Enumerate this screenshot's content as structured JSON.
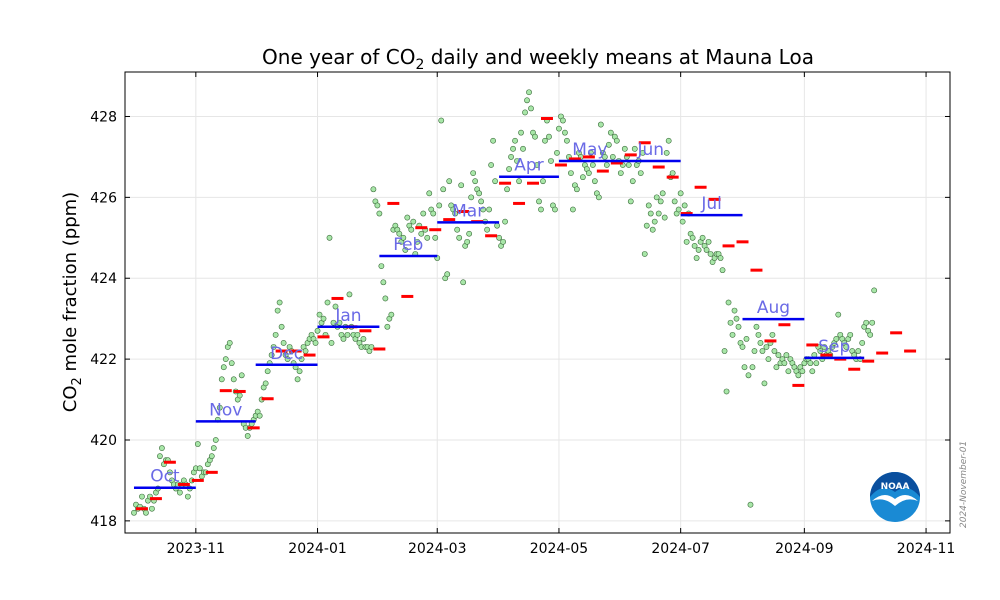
{
  "chart_data": {
    "type": "scatter",
    "title_prefix": "One year of CO",
    "title_sub": "2",
    "title_suffix": " daily and weekly means at Mauna Loa",
    "ylabel_prefix": "CO",
    "ylabel_sub": "2",
    "ylabel_suffix": " mole fraction (ppm)",
    "xlabel": "",
    "x_units": "days since 2023-10-01",
    "xlim": [
      -4.5,
      409
    ],
    "ylim": [
      417.7,
      429.1
    ],
    "x_ticks": [
      {
        "x": 31,
        "label": "2023-11"
      },
      {
        "x": 92,
        "label": "2024-01"
      },
      {
        "x": 152,
        "label": "2024-03"
      },
      {
        "x": 213,
        "label": "2024-05"
      },
      {
        "x": 274,
        "label": "2024-07"
      },
      {
        "x": 336,
        "label": "2024-09"
      },
      {
        "x": 397,
        "label": "2024-11"
      }
    ],
    "y_ticks": [
      418,
      420,
      422,
      424,
      426,
      428
    ],
    "grid": true,
    "colors": {
      "daily_fill": "#a8e6a8",
      "daily_edge": "#3a6b3a",
      "weekly": "#ff0000",
      "monthly": "#0000ee",
      "month_label": "#6a6ae6",
      "noaa_blue": "#0a4f9e",
      "noaa_light": "#1a8ad4"
    },
    "monthly_means": [
      {
        "label": "Oct",
        "x0": 0,
        "x1": 31,
        "y": 418.82
      },
      {
        "label": "Nov",
        "x0": 31,
        "x1": 61,
        "y": 420.46
      },
      {
        "label": "Dec",
        "x0": 61,
        "x1": 92,
        "y": 421.86
      },
      {
        "label": "Jan",
        "x0": 92,
        "x1": 123,
        "y": 422.8
      },
      {
        "label": "Feb",
        "x0": 123,
        "x1": 152,
        "y": 424.55
      },
      {
        "label": "Mar",
        "x0": 152,
        "x1": 183,
        "y": 425.38
      },
      {
        "label": "Apr",
        "x0": 183,
        "x1": 213,
        "y": 426.51
      },
      {
        "label": "May",
        "x0": 213,
        "x1": 244,
        "y": 426.9
      },
      {
        "label": "Jun",
        "x0": 244,
        "x1": 274,
        "y": 426.9
      },
      {
        "label": "Jul",
        "x0": 274,
        "x1": 305,
        "y": 425.56
      },
      {
        "label": "Aug",
        "x0": 305,
        "x1": 336,
        "y": 422.99
      },
      {
        "label": "Sep",
        "x0": 336,
        "x1": 366,
        "y": 422.03
      }
    ],
    "weekly_means": [
      {
        "x": 4,
        "y": 418.3
      },
      {
        "x": 11,
        "y": 418.55
      },
      {
        "x": 18,
        "y": 419.45
      },
      {
        "x": 25,
        "y": 418.9
      },
      {
        "x": 32,
        "y": 419.0
      },
      {
        "x": 39,
        "y": 419.2
      },
      {
        "x": 46,
        "y": 421.22
      },
      {
        "x": 53,
        "y": 421.2
      },
      {
        "x": 60,
        "y": 420.3
      },
      {
        "x": 67,
        "y": 421.02
      },
      {
        "x": 74,
        "y": 422.2
      },
      {
        "x": 81,
        "y": 422.2
      },
      {
        "x": 88,
        "y": 422.1
      },
      {
        "x": 95,
        "y": 422.55
      },
      {
        "x": 102,
        "y": 423.5
      },
      {
        "x": 109,
        "y": 422.8
      },
      {
        "x": 116,
        "y": 422.7
      },
      {
        "x": 123,
        "y": 422.25
      },
      {
        "x": 130,
        "y": 425.85
      },
      {
        "x": 137,
        "y": 423.55
      },
      {
        "x": 144,
        "y": 425.25
      },
      {
        "x": 151,
        "y": 425.2
      },
      {
        "x": 158,
        "y": 425.45
      },
      {
        "x": 165,
        "y": 425.65
      },
      {
        "x": 172,
        "y": 425.4
      },
      {
        "x": 179,
        "y": 425.05
      },
      {
        "x": 186,
        "y": 426.35
      },
      {
        "x": 193,
        "y": 425.85
      },
      {
        "x": 200,
        "y": 426.35
      },
      {
        "x": 207,
        "y": 427.95
      },
      {
        "x": 214,
        "y": 426.8
      },
      {
        "x": 221,
        "y": 426.95
      },
      {
        "x": 228,
        "y": 427.0
      },
      {
        "x": 235,
        "y": 426.65
      },
      {
        "x": 242,
        "y": 426.85
      },
      {
        "x": 249,
        "y": 427.05
      },
      {
        "x": 256,
        "y": 427.35
      },
      {
        "x": 263,
        "y": 426.75
      },
      {
        "x": 270,
        "y": 426.5
      },
      {
        "x": 277,
        "y": 425.6
      },
      {
        "x": 284,
        "y": 426.25
      },
      {
        "x": 291,
        "y": 425.95
      },
      {
        "x": 298,
        "y": 424.8
      },
      {
        "x": 305,
        "y": 424.9
      },
      {
        "x": 312,
        "y": 424.2
      },
      {
        "x": 319,
        "y": 422.45
      },
      {
        "x": 326,
        "y": 422.85
      },
      {
        "x": 333,
        "y": 421.35
      },
      {
        "x": 340,
        "y": 422.35
      },
      {
        "x": 347,
        "y": 422.1
      },
      {
        "x": 354,
        "y": 422.0
      },
      {
        "x": 361,
        "y": 421.75
      },
      {
        "x": 368,
        "y": 421.95
      },
      {
        "x": 375,
        "y": 422.15
      },
      {
        "x": 382,
        "y": 422.65
      },
      {
        "x": 389,
        "y": 422.2
      }
    ],
    "daily_values": [
      418.2,
      418.4,
      418.3,
      418.35,
      418.6,
      418.3,
      418.2,
      418.5,
      418.6,
      418.3,
      418.5,
      418.7,
      418.8,
      419.6,
      419.8,
      419.4,
      419.5,
      419.5,
      419.2,
      419.0,
      418.9,
      418.8,
      418.9,
      418.7,
      418.9,
      419.0,
      418.9,
      418.6,
      418.8,
      419.0,
      419.2,
      419.3,
      419.9,
      419.3,
      419.1,
      419.2,
      419.2,
      419.4,
      419.5,
      419.6,
      419.8,
      420.0,
      420.5,
      420.8,
      421.5,
      421.8,
      422.0,
      422.3,
      422.4,
      421.9,
      421.5,
      421.2,
      421.0,
      421.1,
      421.6,
      420.4,
      420.3,
      420.1,
      420.3,
      420.4,
      420.5,
      420.6,
      420.7,
      420.6,
      421.0,
      421.3,
      421.4,
      421.7,
      421.9,
      422.1,
      422.3,
      422.6,
      423.2,
      423.4,
      422.8,
      422.4,
      422.1,
      422.0,
      422.3,
      422.2,
      421.9,
      421.8,
      421.5,
      421.7,
      422.0,
      422.3,
      422.2,
      422.4,
      422.5,
      422.6,
      422.5,
      422.4,
      422.7,
      423.1,
      422.9,
      423.0,
      422.6,
      423.4,
      425.0,
      422.4,
      422.9,
      423.3,
      422.8,
      422.9,
      422.6,
      422.5,
      422.8,
      422.6,
      423.6,
      422.8,
      422.6,
      422.5,
      422.6,
      422.4,
      422.3,
      422.5,
      422.3,
      422.3,
      422.2,
      422.3,
      426.2,
      425.9,
      425.8,
      425.6,
      424.3,
      423.9,
      423.5,
      422.8,
      423.0,
      423.1,
      425.2,
      425.3,
      425.2,
      425.1,
      424.9,
      425.0,
      424.7,
      425.5,
      425.3,
      425.2,
      425.4,
      424.6,
      424.9,
      425.3,
      425.1,
      425.6,
      425.2,
      425.0,
      426.1,
      425.7,
      425.6,
      425.0,
      424.5,
      425.8,
      427.9,
      426.2,
      424.0,
      424.1,
      426.4,
      425.8,
      425.7,
      425.6,
      425.2,
      425.0,
      426.3,
      423.9,
      424.8,
      424.9,
      425.1,
      426.0,
      426.6,
      426.4,
      426.2,
      426.1,
      425.9,
      425.7,
      425.4,
      425.2,
      425.7,
      426.8,
      427.4,
      426.4,
      425.3,
      425.0,
      424.8,
      424.9,
      425.4,
      426.2,
      426.7,
      427.0,
      427.2,
      427.4,
      426.9,
      426.4,
      427.6,
      427.2,
      428.1,
      428.4,
      428.6,
      428.2,
      427.6,
      427.5,
      426.8,
      425.9,
      425.7,
      426.4,
      427.4,
      427.9,
      427.5,
      426.9,
      425.8,
      425.7,
      427.1,
      427.7,
      428.0,
      427.9,
      427.6,
      427.4,
      427.0,
      426.6,
      425.7,
      426.3,
      426.2,
      427.1,
      427.0,
      426.5,
      426.8,
      426.7,
      426.6,
      427.1,
      426.8,
      426.4,
      426.1,
      426.0,
      427.8,
      427.1,
      427.0,
      426.8,
      427.3,
      427.6,
      427.0,
      427.5,
      427.4,
      426.9,
      426.6,
      426.8,
      427.2,
      427.0,
      426.8,
      425.9,
      426.4,
      427.2,
      426.8,
      426.9,
      426.6,
      427.1,
      424.6,
      425.3,
      425.8,
      425.6,
      425.2,
      425.4,
      426.0,
      425.6,
      425.9,
      426.1,
      425.5,
      427.1,
      427.4,
      426.5,
      426.6,
      425.9,
      425.6,
      425.7,
      426.1,
      425.4,
      425.8,
      424.9,
      425.6,
      425.1,
      425.0,
      424.8,
      424.5,
      424.7,
      424.9,
      425.0,
      424.8,
      424.7,
      424.9,
      424.6,
      424.4,
      424.5,
      424.6,
      424.6,
      424.5,
      424.2,
      422.2,
      421.2,
      423.4,
      422.9,
      422.6,
      423.2,
      423.0,
      422.8,
      422.4,
      422.3,
      421.8,
      422.5,
      421.6,
      418.4,
      421.8,
      422.2,
      422.8,
      422.6,
      422.4,
      422.2,
      421.4,
      422.3,
      422.0,
      422.4,
      422.6,
      422.2,
      421.8,
      422.1,
      421.9,
      422.0,
      421.9,
      422.1,
      421.7,
      422.0,
      421.9,
      421.8,
      421.7,
      421.6,
      421.8,
      421.7,
      421.9,
      422.0,
      422.0,
      421.9,
      421.7,
      422.1,
      421.9,
      422.3,
      422.2,
      422.0,
      422.3,
      422.1,
      422.2,
      422.1,
      422.3,
      422.4,
      422.5,
      423.1,
      422.6,
      422.5,
      422.4,
      422.3,
      422.5,
      422.6,
      422.2,
      422.1,
      422.0,
      422.2,
      422.0,
      422.4,
      422.8,
      422.9,
      422.7,
      422.6,
      422.9,
      423.7
    ]
  },
  "watermark": "2024-November-01",
  "logo_text": "NOAA"
}
